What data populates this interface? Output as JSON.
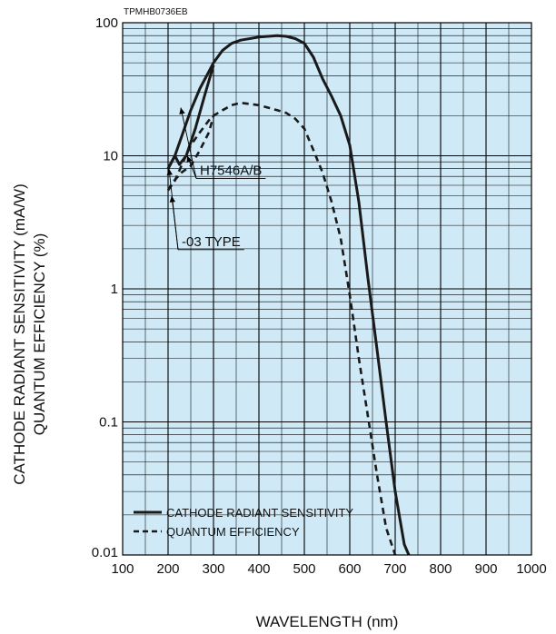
{
  "figure_code": "TPMHB0736EB",
  "colors": {
    "plot_background": "#cfe9f7",
    "grid": "#000000",
    "line": "#1a1a1a"
  },
  "chart_data": {
    "type": "line",
    "xlabel": "WAVELENGTH (nm)",
    "ylabel_lines": [
      "CATHODE RADIANT SENSITIVITY (mA/W)",
      "QUANTUM EFFICIENCY (%)"
    ],
    "x_scale": "linear",
    "y_scale": "log",
    "xlim": [
      100,
      1000
    ],
    "ylim": [
      0.01,
      100
    ],
    "x_ticks": [
      100,
      200,
      300,
      400,
      500,
      600,
      700,
      800,
      900,
      1000
    ],
    "x_tick_labels": [
      "100",
      "200",
      "300",
      "400",
      "500",
      "600",
      "700",
      "800",
      "900",
      "1000"
    ],
    "y_ticks": [
      0.01,
      0.1,
      1,
      10,
      100
    ],
    "y_tick_labels": [
      "0.01",
      "0.1",
      "1",
      "10",
      "100"
    ],
    "grid": true,
    "legend_position": "bottom-left",
    "series": [
      {
        "name": "CATHODE RADIANT SENSITIVITY",
        "style": "solid",
        "x": [
          200,
          215,
          230,
          250,
          270,
          290,
          300,
          320,
          340,
          360,
          400,
          440,
          460,
          480,
          500,
          520,
          540,
          560,
          580,
          600,
          620,
          640,
          660,
          680,
          700,
          720,
          730
        ],
        "y": [
          8,
          10,
          14,
          22,
          32,
          43,
          50,
          62,
          70,
          74,
          78,
          80,
          79,
          76,
          70,
          55,
          38,
          28,
          20,
          12,
          4.5,
          1.2,
          0.35,
          0.1,
          0.03,
          0.012,
          0.01
        ]
      },
      {
        "name": "CATHODE RADIANT SENSITIVITY — -03 TYPE",
        "style": "solid",
        "x": [
          200,
          215,
          225,
          240,
          260,
          280,
          300
        ],
        "y": [
          8,
          10,
          8.6,
          10,
          16,
          28,
          48
        ]
      },
      {
        "name": "QUANTUM EFFICIENCY",
        "style": "dashed",
        "x": [
          200,
          215,
          230,
          250,
          270,
          290,
          300,
          320,
          340,
          360,
          380,
          400,
          420,
          440,
          460,
          480,
          500,
          520,
          540,
          560,
          580,
          600,
          620,
          640,
          660,
          680,
          700
        ],
        "y": [
          5.5,
          6.5,
          8.5,
          12,
          15,
          18.5,
          20,
          22,
          24,
          25,
          24.5,
          24,
          23,
          22,
          21,
          19,
          16,
          11,
          7.5,
          4.5,
          2.4,
          0.9,
          0.3,
          0.11,
          0.04,
          0.016,
          0.01
        ]
      },
      {
        "name": "QUANTUM EFFICIENCY — -03 TYPE",
        "style": "dashed",
        "x": [
          200,
          210,
          230,
          250,
          270,
          290,
          300
        ],
        "y": [
          5.5,
          6.3,
          7.5,
          8.4,
          11,
          15,
          20
        ]
      }
    ],
    "annotations": [
      {
        "text": "H7546A/B",
        "label_x": 270,
        "label_y": 7.2,
        "pointer_to": [
          [
            242,
            10
          ],
          [
            228,
            23
          ]
        ]
      },
      {
        "text": "-03 TYPE",
        "label_x": 230,
        "label_y": 2.1,
        "pointer_to": [
          [
            202,
            8
          ],
          [
            208,
            5
          ]
        ]
      }
    ],
    "legend": [
      {
        "label": "CATHODE RADIANT SENSITIVITY",
        "style": "solid"
      },
      {
        "label": "QUANTUM EFFICIENCY",
        "style": "dashed"
      }
    ]
  }
}
